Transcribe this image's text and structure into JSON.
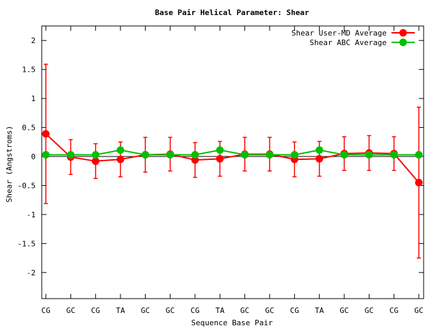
{
  "chart_data": {
    "type": "line",
    "title": "Base Pair Helical Parameter: Shear",
    "xlabel": "Sequence Base Pair",
    "ylabel": "Shear (Angstroms)",
    "categories": [
      "CG",
      "GC",
      "CG",
      "TA",
      "GC",
      "GC",
      "CG",
      "TA",
      "GC",
      "GC",
      "CG",
      "TA",
      "GC",
      "GC",
      "CG",
      "GC"
    ],
    "ylim": [
      -2.45,
      2.25
    ],
    "yticks": [
      -2,
      -1.5,
      -1,
      -0.5,
      0,
      0.5,
      1,
      1.5,
      2
    ],
    "ytick_labels": [
      "-2",
      "-1.5",
      "-1",
      "-0.5",
      "0",
      "0.5",
      "1",
      "1.5",
      "2"
    ],
    "grid": false,
    "legend_position": "top-right",
    "series": [
      {
        "name": "Shear User-MD Average",
        "color": "#ff0000",
        "values": [
          0.39,
          -0.01,
          -0.08,
          -0.05,
          0.03,
          0.04,
          -0.06,
          -0.04,
          0.04,
          0.04,
          -0.05,
          -0.04,
          0.05,
          0.06,
          0.05,
          -0.45
        ],
        "error": [
          1.2,
          0.3,
          0.3,
          0.3,
          0.3,
          0.29,
          0.3,
          0.3,
          0.29,
          0.29,
          0.3,
          0.3,
          0.29,
          0.3,
          0.29,
          1.3
        ]
      },
      {
        "name": "Shear ABC Average",
        "color": "#00c000",
        "values": [
          0.03,
          0.03,
          0.03,
          0.11,
          0.03,
          0.03,
          0.03,
          0.11,
          0.03,
          0.03,
          0.03,
          0.11,
          0.03,
          0.03,
          0.03,
          0.03
        ]
      }
    ]
  }
}
